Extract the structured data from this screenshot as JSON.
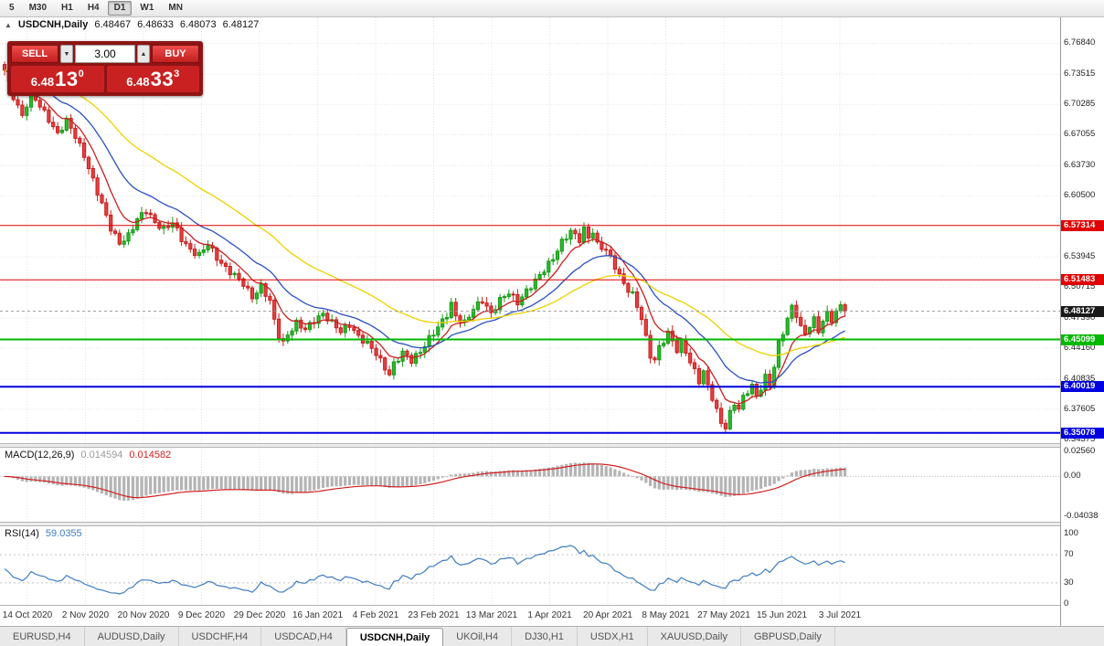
{
  "toolbar": {
    "timeframes": [
      {
        "label": "5",
        "active": false
      },
      {
        "label": "M30",
        "active": false
      },
      {
        "label": "H1",
        "active": false
      },
      {
        "label": "H4",
        "active": false
      },
      {
        "label": "D1",
        "active": true
      },
      {
        "label": "W1",
        "active": false
      },
      {
        "label": "MN",
        "active": false
      }
    ]
  },
  "chart": {
    "symbol": "USDCNH,Daily",
    "ohlc": {
      "open": "6.48467",
      "high": "6.48633",
      "low": "6.48073",
      "close": "6.48127"
    }
  },
  "icons": {
    "symbol_marker": "▲",
    "volume_down": "▼",
    "volume_up": "▲"
  },
  "trade_panel": {
    "sell_label": "SELL",
    "buy_label": "BUY",
    "volume": "3.00",
    "sell_price": {
      "base": "6.48",
      "main": "13",
      "sup": "0"
    },
    "buy_price": {
      "base": "6.48",
      "main": "33",
      "sup": "3"
    }
  },
  "indicators": {
    "macd": {
      "title": "MACD(12,26,9)",
      "value_main": "0.014594",
      "value_signal": "0.014582"
    },
    "rsi": {
      "title": "RSI(14)",
      "value": "59.0355"
    }
  },
  "time_axis": [
    "14 Oct 2020",
    "2 Nov 2020",
    "20 Nov 2020",
    "9 Dec 2020",
    "29 Dec 2020",
    "16 Jan 2021",
    "4 Feb 2021",
    "23 Feb 2021",
    "13 Mar 2021",
    "1 Apr 2021",
    "20 Apr 2021",
    "8 May 2021",
    "27 May 2021",
    "15 Jun 2021",
    "3 Jul 2021"
  ],
  "tabs": [
    {
      "label": "EURUSD,H4",
      "active": false
    },
    {
      "label": "AUDUSD,Daily",
      "active": false
    },
    {
      "label": "USDCHF,H4",
      "active": false
    },
    {
      "label": "USDCAD,H4",
      "active": false
    },
    {
      "label": "USDCNH,Daily",
      "active": true
    },
    {
      "label": "UKOil,H4",
      "active": false
    },
    {
      "label": "DJ30,H1",
      "active": false
    },
    {
      "label": "USDX,H1",
      "active": false
    },
    {
      "label": "XAUUSD,Daily",
      "active": false
    },
    {
      "label": "GBPUSD,Daily",
      "active": false
    }
  ],
  "chart_data": {
    "type": "candlestick",
    "symbol": "USDCNH",
    "timeframe": "Daily",
    "price": {
      "bar_count": 191,
      "last_close": 6.48127,
      "view_top": 6.7962,
      "view_bottom": 6.3398,
      "grid_ticks": [
        6.7684,
        6.73515,
        6.70285,
        6.67055,
        6.6373,
        6.605,
        6.53945,
        6.50715,
        6.4739,
        6.4416,
        6.40835,
        6.37605,
        6.34375
      ],
      "levels": [
        {
          "price": 6.57314,
          "color": "#e00000",
          "width": 1
        },
        {
          "price": 6.51483,
          "color": "#e00000",
          "width": 1
        },
        {
          "price": 6.45099,
          "color": "#00b800",
          "width": 2
        },
        {
          "price": 6.40019,
          "color": "#0000e0",
          "width": 2
        },
        {
          "price": 6.35078,
          "color": "#0000e0",
          "width": 2
        }
      ],
      "current_price_tag_color": "#1a1a1a",
      "moving_averages": [
        {
          "period": 8,
          "color": "#c82020"
        },
        {
          "period": 20,
          "color": "#2d4fc0"
        },
        {
          "period": 45,
          "color": "#ecd200"
        }
      ],
      "close_keypoints": [
        [
          0,
          6.738
        ],
        [
          2,
          6.712
        ],
        [
          4,
          6.692
        ],
        [
          6,
          6.714
        ],
        [
          8,
          6.7
        ],
        [
          10,
          6.688
        ],
        [
          12,
          6.672
        ],
        [
          14,
          6.684
        ],
        [
          16,
          6.668
        ],
        [
          18,
          6.65
        ],
        [
          20,
          6.622
        ],
        [
          22,
          6.594
        ],
        [
          24,
          6.57
        ],
        [
          26,
          6.556
        ],
        [
          28,
          6.562
        ],
        [
          30,
          6.578
        ],
        [
          32,
          6.59
        ],
        [
          34,
          6.578
        ],
        [
          36,
          6.568
        ],
        [
          38,
          6.575
        ],
        [
          40,
          6.56
        ],
        [
          42,
          6.548
        ],
        [
          44,
          6.54
        ],
        [
          46,
          6.552
        ],
        [
          48,
          6.54
        ],
        [
          50,
          6.528
        ],
        [
          52,
          6.518
        ],
        [
          54,
          6.51
        ],
        [
          56,
          6.498
        ],
        [
          58,
          6.508
        ],
        [
          60,
          6.49
        ],
        [
          61,
          6.47
        ],
        [
          62,
          6.455
        ],
        [
          63,
          6.448
        ],
        [
          64,
          6.458
        ],
        [
          66,
          6.468
        ],
        [
          68,
          6.46
        ],
        [
          70,
          6.472
        ],
        [
          72,
          6.48
        ],
        [
          74,
          6.468
        ],
        [
          76,
          6.458
        ],
        [
          78,
          6.468
        ],
        [
          80,
          6.455
        ],
        [
          82,
          6.445
        ],
        [
          84,
          6.435
        ],
        [
          86,
          6.422
        ],
        [
          87,
          6.415
        ],
        [
          88,
          6.425
        ],
        [
          90,
          6.435
        ],
        [
          92,
          6.428
        ],
        [
          94,
          6.44
        ],
        [
          96,
          6.452
        ],
        [
          98,
          6.462
        ],
        [
          100,
          6.478
        ],
        [
          101,
          6.49
        ],
        [
          102,
          6.478
        ],
        [
          104,
          6.468
        ],
        [
          106,
          6.482
        ],
        [
          108,
          6.494
        ],
        [
          110,
          6.48
        ],
        [
          112,
          6.492
        ],
        [
          114,
          6.5
        ],
        [
          116,
          6.492
        ],
        [
          118,
          6.504
        ],
        [
          120,
          6.512
        ],
        [
          122,
          6.525
        ],
        [
          124,
          6.54
        ],
        [
          126,
          6.556
        ],
        [
          128,
          6.565
        ],
        [
          130,
          6.558
        ],
        [
          131,
          6.57
        ],
        [
          132,
          6.562
        ],
        [
          133,
          6.568
        ],
        [
          134,
          6.552
        ],
        [
          136,
          6.545
        ],
        [
          138,
          6.53
        ],
        [
          140,
          6.512
        ],
        [
          142,
          6.498
        ],
        [
          144,
          6.472
        ],
        [
          145,
          6.452
        ],
        [
          146,
          6.435
        ],
        [
          147,
          6.43
        ],
        [
          148,
          6.444
        ],
        [
          150,
          6.456
        ],
        [
          151,
          6.448
        ],
        [
          152,
          6.438
        ],
        [
          153,
          6.448
        ],
        [
          154,
          6.44
        ],
        [
          155,
          6.428
        ],
        [
          156,
          6.418
        ],
        [
          157,
          6.406
        ],
        [
          158,
          6.414
        ],
        [
          159,
          6.4
        ],
        [
          160,
          6.388
        ],
        [
          161,
          6.375
        ],
        [
          162,
          6.364
        ],
        [
          163,
          6.358
        ],
        [
          164,
          6.372
        ],
        [
          165,
          6.382
        ],
        [
          166,
          6.374
        ],
        [
          167,
          6.388
        ],
        [
          168,
          6.396
        ],
        [
          169,
          6.402
        ],
        [
          170,
          6.392
        ],
        [
          171,
          6.4
        ],
        [
          172,
          6.41
        ],
        [
          173,
          6.4
        ],
        [
          174,
          6.42
        ],
        [
          175,
          6.446
        ],
        [
          176,
          6.46
        ],
        [
          177,
          6.474
        ],
        [
          178,
          6.488
        ],
        [
          179,
          6.478
        ],
        [
          180,
          6.462
        ],
        [
          181,
          6.456
        ],
        [
          182,
          6.464
        ],
        [
          183,
          6.472
        ],
        [
          184,
          6.462
        ],
        [
          185,
          6.472
        ],
        [
          186,
          6.48
        ],
        [
          187,
          6.472
        ],
        [
          188,
          6.478
        ],
        [
          189,
          6.486
        ],
        [
          190,
          6.48127
        ]
      ]
    },
    "macd": {
      "params": "12,26,9",
      "last_main": 0.014594,
      "last_signal": 0.014582,
      "view_top": 0.0295,
      "view_bottom": -0.0465,
      "axis_ticks": [
        {
          "value": 0.0256,
          "label": "0.02560"
        },
        {
          "value": 0,
          "label": "0.00"
        },
        {
          "value": -0.04038,
          "label": "-0.04038"
        }
      ],
      "histogram_color": "#b4b4b4",
      "signal_color": "#d42020"
    },
    "rsi": {
      "period": 14,
      "last_value": 59.0355,
      "axis_ticks": [
        100,
        70,
        30,
        0
      ],
      "levels": [
        70,
        30
      ],
      "color": "#3e7cc1"
    }
  }
}
